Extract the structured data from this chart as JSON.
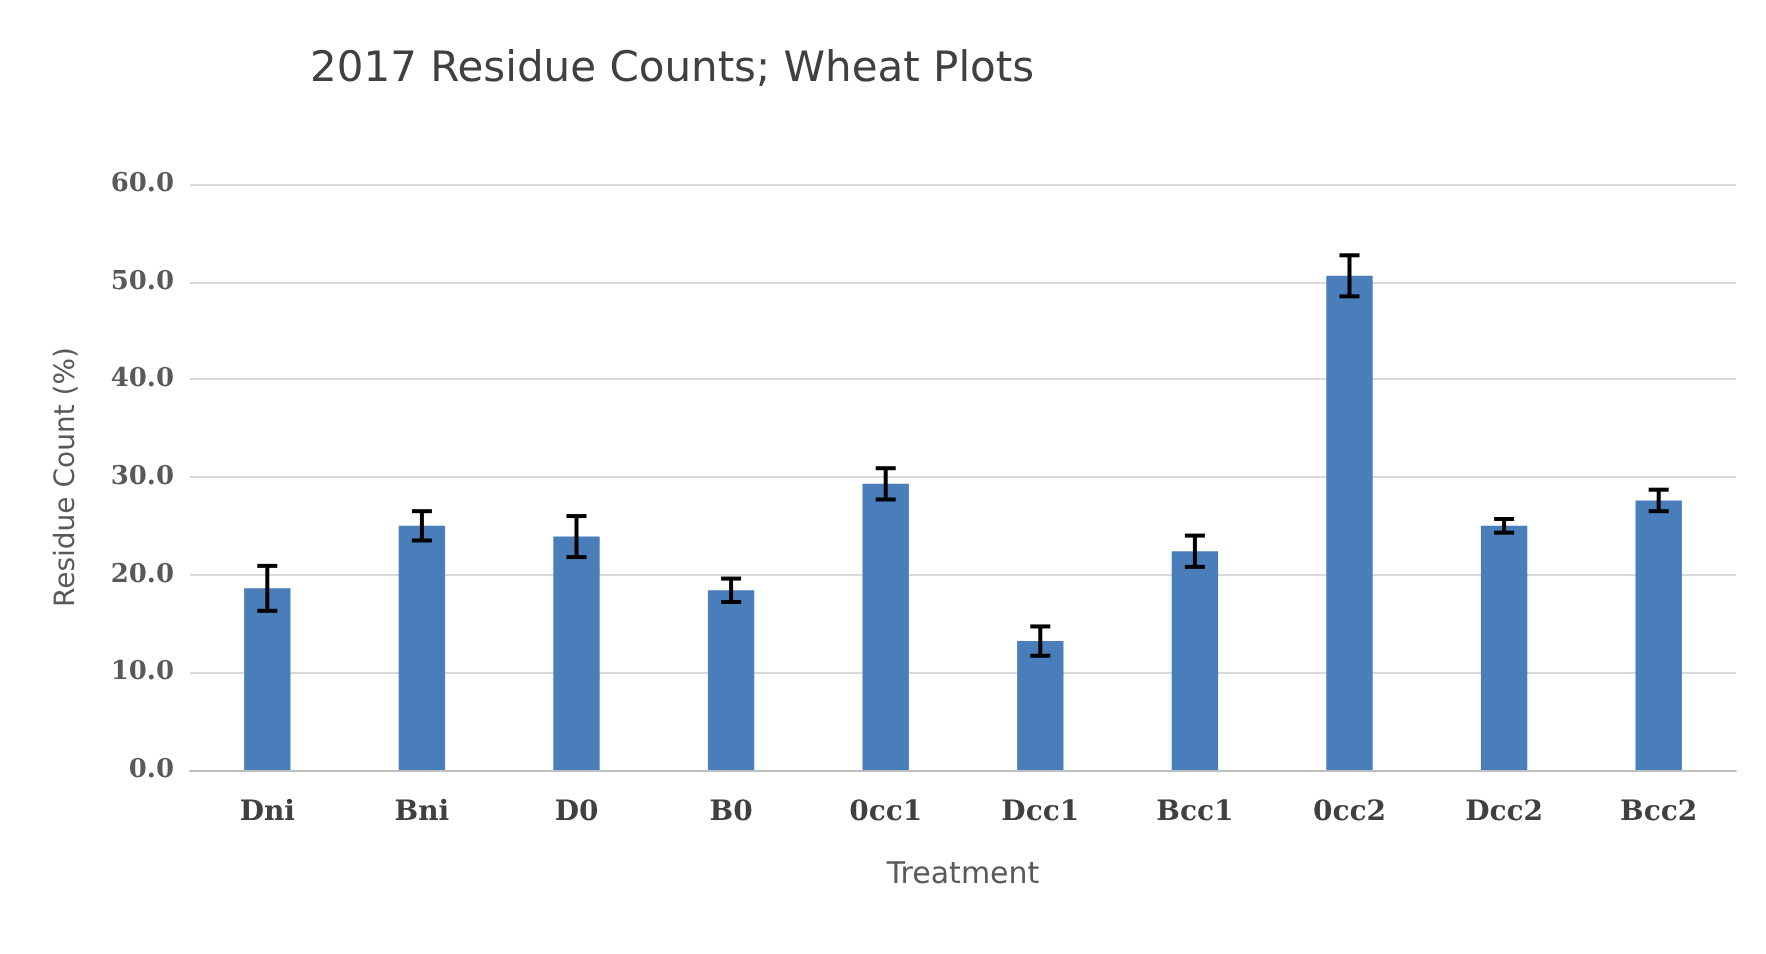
{
  "chart_data": {
    "type": "bar",
    "title": "2017 Residue Counts; Wheat Plots",
    "xlabel": "Treatment",
    "ylabel": "Residue Count (%)",
    "categories": [
      "Dni",
      "Bni",
      "D0",
      "B0",
      "0cc1",
      "Dcc1",
      "Bcc1",
      "0cc2",
      "Dcc2",
      "Bcc2"
    ],
    "values": [
      18.6,
      25.0,
      23.9,
      18.4,
      29.3,
      13.2,
      22.4,
      50.6,
      25.0,
      27.6
    ],
    "errors": [
      2.3,
      1.5,
      2.1,
      1.2,
      1.6,
      1.5,
      1.6,
      2.1,
      0.7,
      1.1
    ],
    "color": "#4a7ebb",
    "ylim": [
      0,
      60
    ],
    "yticks": [
      {
        "value": 0,
        "label": "0.0"
      },
      {
        "value": 10,
        "label": "10.0"
      },
      {
        "value": 20,
        "label": "20.0"
      },
      {
        "value": 30,
        "label": "30.0"
      },
      {
        "value": 40,
        "label": "40.0"
      },
      {
        "value": 50,
        "label": "50.0"
      },
      {
        "value": 60,
        "label": "60.0"
      }
    ],
    "grid": "y"
  }
}
